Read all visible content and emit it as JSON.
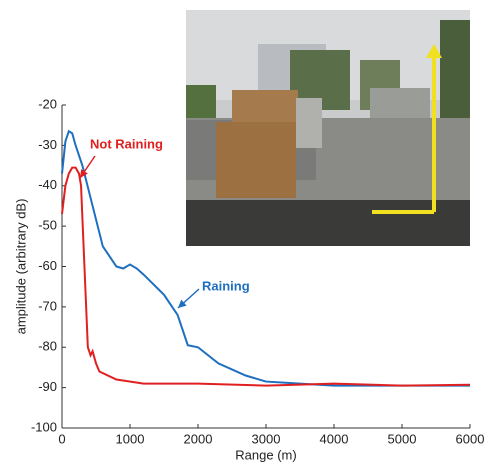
{
  "chart_data": {
    "type": "line",
    "x_label": "Range (m)",
    "y_label": "amplitude (arbitrary dB)",
    "xlim": [
      0,
      6000
    ],
    "xticks": [
      0,
      1000,
      2000,
      3000,
      4000,
      5000,
      6000
    ],
    "ylim": [
      -100,
      -20
    ],
    "yticks": [
      -100,
      -90,
      -80,
      -70,
      -60,
      -50,
      -40,
      -30,
      -20
    ],
    "series": [
      {
        "name": "Raining",
        "color": "#1f6fc0",
        "x": [
          0,
          50,
          100,
          150,
          200,
          300,
          450,
          600,
          800,
          900,
          1000,
          1100,
          1200,
          1500,
          1700,
          1850,
          2000,
          2300,
          2700,
          3000,
          3500,
          4000,
          5000,
          6000
        ],
        "values": [
          -37,
          -29,
          -26.5,
          -27,
          -30,
          -35,
          -45,
          -55,
          -60,
          -60.5,
          -59.5,
          -60.5,
          -62,
          -67,
          -72,
          -79.5,
          -80,
          -84,
          -87,
          -88.5,
          -89,
          -89.5,
          -89.5,
          -89.5
        ]
      },
      {
        "name": "Not Raining",
        "color": "#e02020",
        "x": [
          0,
          50,
          100,
          150,
          200,
          250,
          280,
          330,
          380,
          420,
          450,
          500,
          550,
          800,
          1200,
          2000,
          3000,
          4000,
          5000,
          6000
        ],
        "values": [
          -47,
          -40,
          -37,
          -35.5,
          -35.5,
          -37,
          -40,
          -60,
          -80,
          -82,
          -81,
          -84,
          -86,
          -88,
          -89,
          -89,
          -89.5,
          -89,
          -89.5,
          -89.3
        ]
      }
    ]
  }
}
